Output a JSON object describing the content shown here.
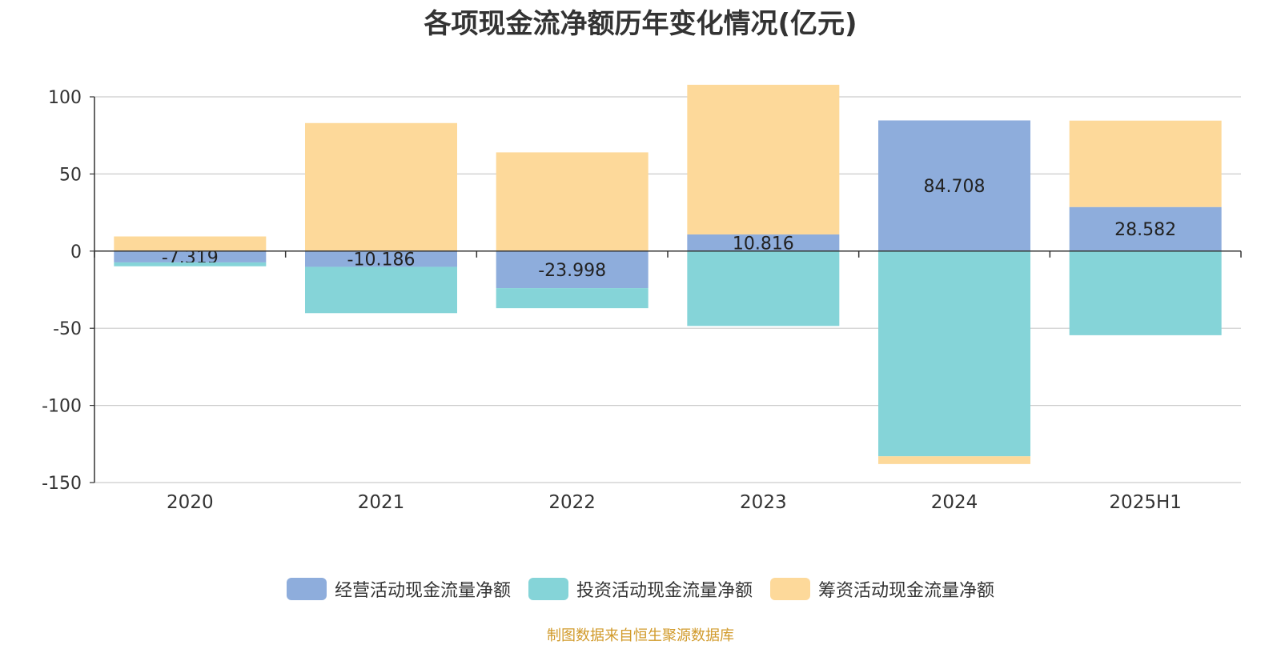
{
  "title": "各项现金流净额历年变化情况(亿元)",
  "source": "制图数据来自恒生聚源数据库",
  "colors": {
    "operating": "#8eaddc",
    "investing": "#85d4d8",
    "financing": "#fdd99a",
    "axis": "#333333",
    "grid": "#cccccc"
  },
  "chart_data": {
    "type": "bar",
    "stacked": true,
    "title": "各项现金流净额历年变化情况(亿元)",
    "categories": [
      "2020",
      "2021",
      "2022",
      "2023",
      "2024",
      "2025H1"
    ],
    "ylim": [
      -150,
      100
    ],
    "yticks": [
      100,
      50,
      0,
      -50,
      -100,
      -150
    ],
    "grid": true,
    "legend_position": "bottom",
    "series": [
      {
        "name": "经营活动现金流量净额",
        "color": "#8eaddc",
        "values": [
          -7.319,
          -10.186,
          -23.998,
          10.816,
          84.708,
          28.582
        ],
        "data_labels": [
          "-7.319",
          "-10.186",
          "-23.998",
          "10.816",
          "84.708",
          "28.582"
        ]
      },
      {
        "name": "投资活动现金流量净额",
        "color": "#85d4d8",
        "values": [
          -2.5,
          -30,
          -13,
          -48.5,
          -133,
          -54.5
        ]
      },
      {
        "name": "筹资活动现金流量净额",
        "color": "#fdd99a",
        "values": [
          9.5,
          83,
          64,
          97,
          -5,
          56
        ]
      }
    ]
  }
}
